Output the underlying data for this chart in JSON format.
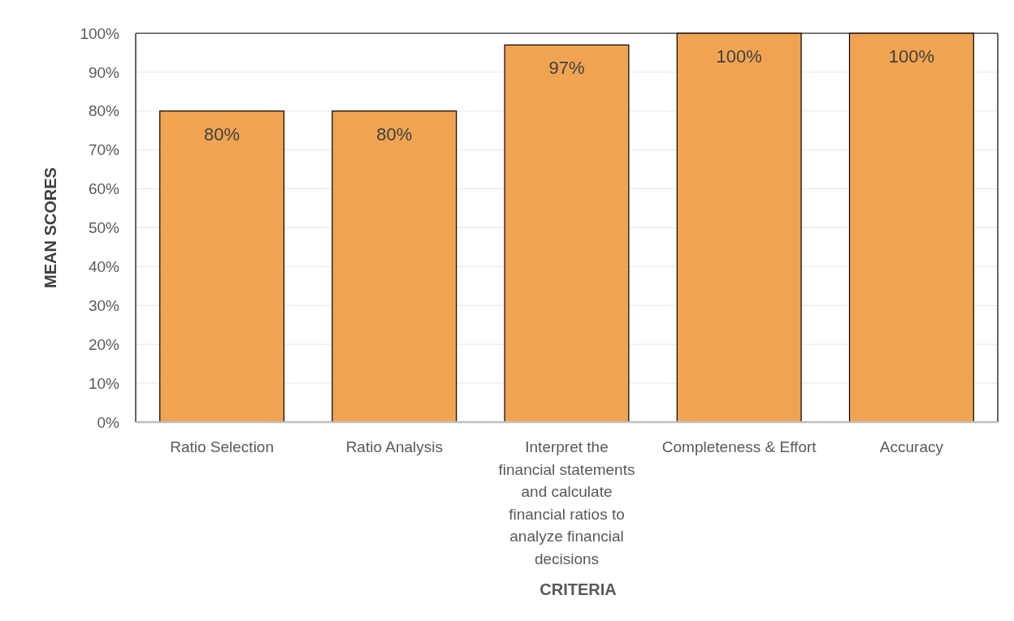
{
  "chart_data": {
    "type": "bar",
    "xlabel": "CRITERIA",
    "ylabel": "MEAN SCORES",
    "categories": [
      "Ratio Selection",
      "Ratio Analysis",
      "Interpret the financial statements and calculate financial ratios to analyze financial decisions",
      "Completeness & Effort",
      "Accuracy"
    ],
    "values": [
      80,
      80,
      97,
      100,
      100
    ],
    "color": "#f0a452",
    "value_labels": [
      "80%",
      "80%",
      "97%",
      "100%",
      "100%"
    ],
    "ylim": [
      0,
      100
    ],
    "yticks": [
      {
        "value": 0,
        "label": "0%"
      },
      {
        "value": 10,
        "label": "10%"
      },
      {
        "value": 20,
        "label": "20%"
      },
      {
        "value": 30,
        "label": "30%"
      },
      {
        "value": 40,
        "label": "40%"
      },
      {
        "value": 50,
        "label": "50%"
      },
      {
        "value": 60,
        "label": "60%"
      },
      {
        "value": 70,
        "label": "70%"
      },
      {
        "value": 80,
        "label": "80%"
      },
      {
        "value": 90,
        "label": "90%"
      },
      {
        "value": 100,
        "label": "100%"
      }
    ],
    "grid": "y"
  }
}
